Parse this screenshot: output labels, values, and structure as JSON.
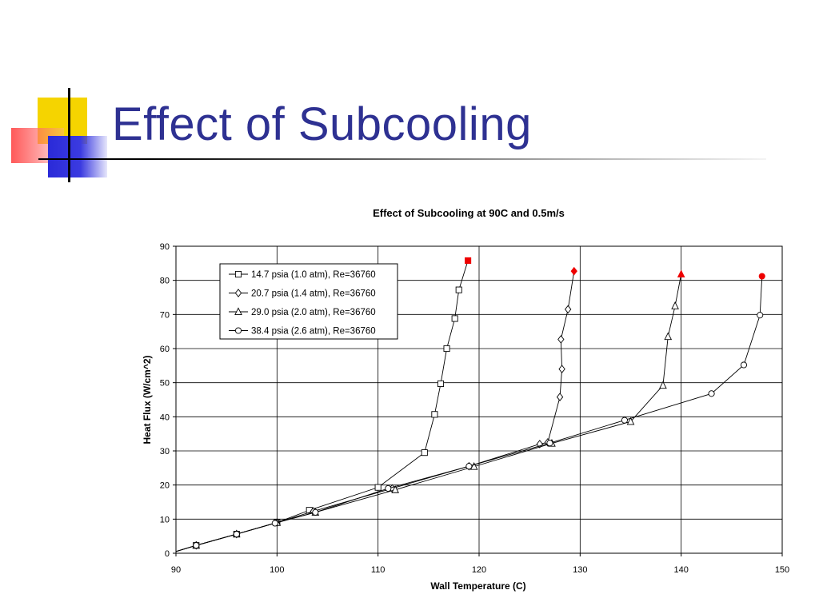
{
  "slide": {
    "title": "Effect of Subcooling"
  },
  "chart_data": {
    "type": "line",
    "title": "Effect of Subcooling at 90C and 0.5m/s",
    "xlabel": "Wall Temperature (C)",
    "ylabel": "Heat Flux (W/cm^2)",
    "xlim": [
      90,
      150
    ],
    "ylim": [
      0,
      90
    ],
    "xticks": [
      90,
      100,
      110,
      120,
      130,
      140,
      150
    ],
    "yticks": [
      0,
      10,
      20,
      30,
      40,
      50,
      60,
      70,
      80,
      90
    ],
    "grid": true,
    "legend_position": "top-left",
    "series": [
      {
        "name": "14.7 psia (1.0 atm), Re=36760",
        "marker": "square",
        "x": [
          90.0,
          92.0,
          96.0,
          100.0,
          103.2,
          110.0,
          114.6,
          115.6,
          116.2,
          116.8,
          117.6,
          118.0
        ],
        "y": [
          0.5,
          2.3,
          5.6,
          9.0,
          12.6,
          19.3,
          29.5,
          40.7,
          49.7,
          60.0,
          68.8,
          77.2
        ],
        "endpoint": {
          "x": 118.9,
          "y": 85.8
        }
      },
      {
        "name": "20.7 psia (1.4 atm), Re=36760",
        "marker": "diamond",
        "x": [
          90.0,
          92.0,
          96.0,
          100.0,
          103.6,
          111.4,
          119.0,
          126.0,
          126.8,
          128.0,
          128.2,
          128.1,
          128.8
        ],
        "y": [
          0.5,
          2.3,
          5.6,
          9.0,
          12.3,
          19.0,
          25.5,
          32.0,
          32.5,
          45.8,
          54.0,
          62.7,
          71.5
        ],
        "endpoint": {
          "x": 129.4,
          "y": 82.7
        }
      },
      {
        "name": "29.0 psia (2.0 atm), Re=36760",
        "marker": "triangle",
        "x": [
          90.0,
          92.0,
          96.0,
          100.0,
          103.8,
          111.7,
          119.5,
          127.2,
          135.0,
          138.2,
          138.7,
          139.4
        ],
        "y": [
          0.5,
          2.3,
          5.6,
          9.0,
          12.0,
          18.6,
          25.4,
          32.2,
          38.6,
          49.2,
          63.5,
          72.5
        ],
        "endpoint": {
          "x": 140.0,
          "y": 81.8
        }
      },
      {
        "name": "38.4 psia (2.6 atm), Re=36760",
        "marker": "circle",
        "x": [
          90.0,
          92.0,
          96.0,
          99.8,
          103.8,
          111.0,
          119.0,
          127.0,
          134.4,
          143.0,
          146.2,
          147.8
        ],
        "y": [
          0.5,
          2.3,
          5.6,
          8.8,
          12.0,
          19.0,
          25.5,
          32.3,
          39.0,
          46.8,
          55.2,
          69.8
        ],
        "endpoint": {
          "x": 148.0,
          "y": 81.2
        }
      }
    ],
    "colors": {
      "line": "#000000",
      "marker_fill": "#ffffff",
      "endpoint": "#ee0000",
      "grid": "#000000"
    }
  }
}
